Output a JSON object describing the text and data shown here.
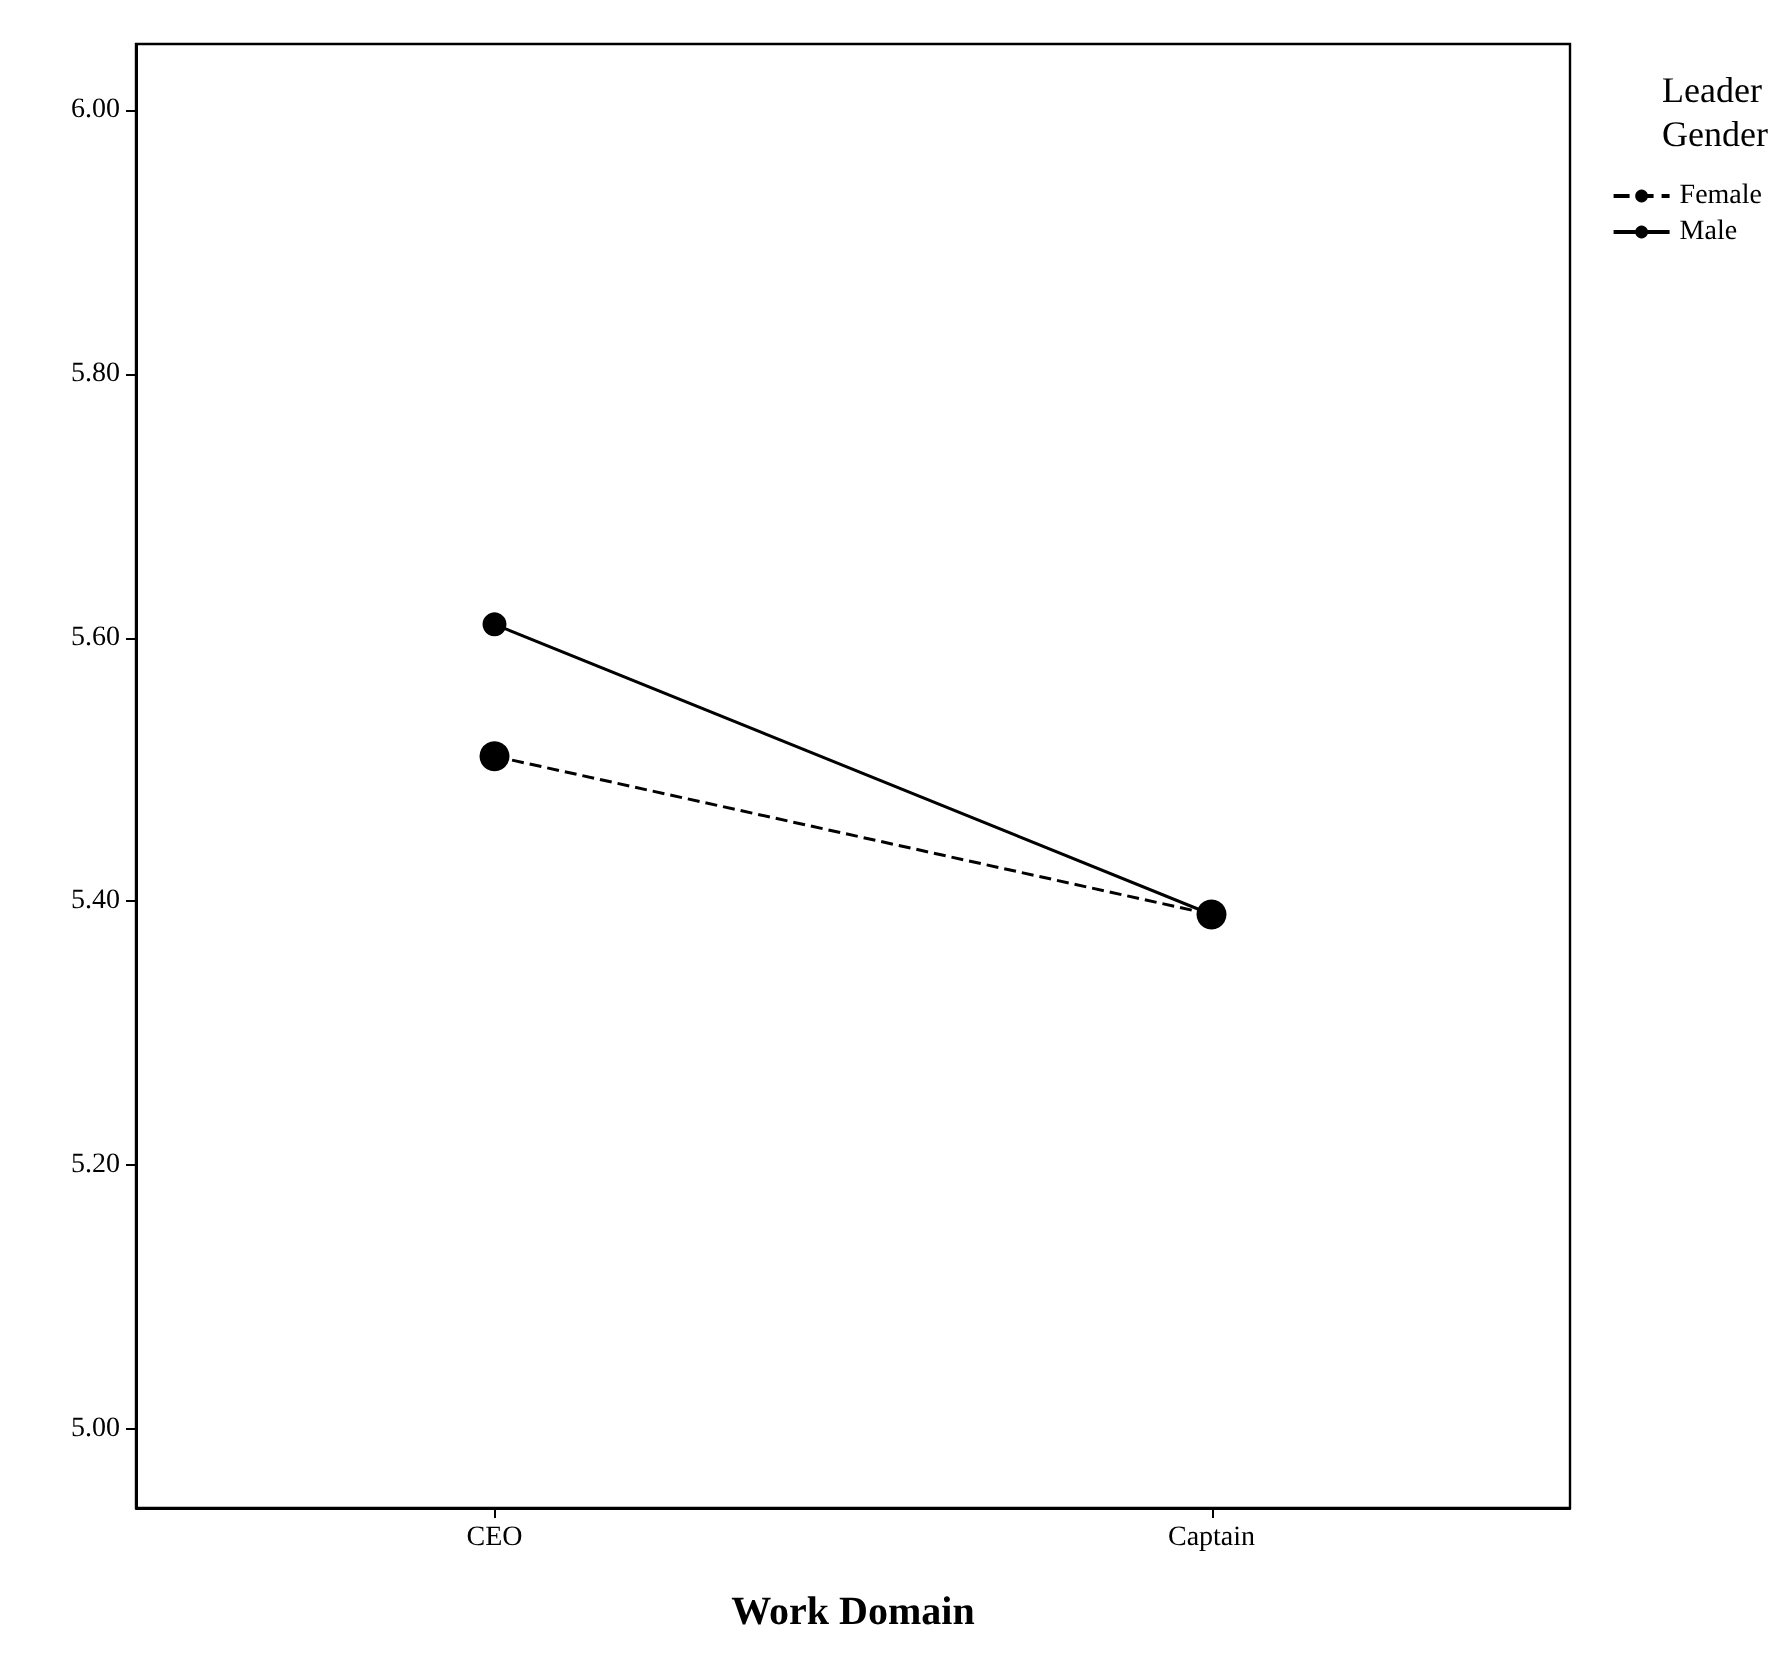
{
  "chart_data": {
    "type": "line",
    "xlabel": "Work Domain",
    "legend_title": "Leader Gender",
    "categories": [
      "CEO",
      "Captain"
    ],
    "series": [
      {
        "name": "Female",
        "color": "#000000",
        "values": [
          5.51,
          5.39
        ],
        "line_style": "dashed"
      },
      {
        "name": "Male",
        "color": "#000000",
        "values": [
          5.61,
          5.39
        ],
        "line_style": "solid"
      }
    ],
    "ylim": [
      4.94,
      6.05
    ],
    "yticks": [
      {
        "value": 5,
        "label": "5.00"
      },
      {
        "value": 5.2,
        "label": "5.20"
      },
      {
        "value": 5.4,
        "label": "5.40"
      },
      {
        "value": 5.6,
        "label": "5.60"
      },
      {
        "value": 5.8,
        "label": "5.80"
      },
      {
        "value": 6,
        "label": "6.00"
      }
    ],
    "grid": false,
    "legend": "top right",
    "marker": "circle"
  }
}
